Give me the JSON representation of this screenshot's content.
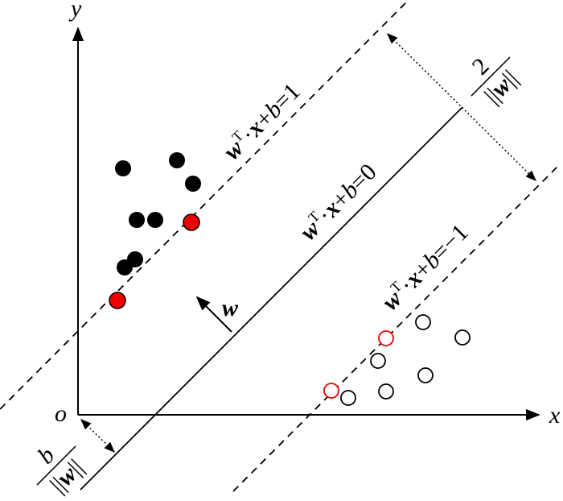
{
  "axes": {
    "x": "x",
    "y": "y",
    "origin": "o"
  },
  "hyperplanes": [
    [
      "w",
      "T",
      "·",
      "x",
      "+",
      "b",
      "=1"
    ],
    [
      "w",
      "T",
      "·",
      "x",
      "+",
      "b",
      "=0"
    ],
    [
      "w",
      "T",
      "·",
      "x",
      "+",
      "b",
      "=−1"
    ]
  ],
  "normal": "w",
  "margin": {
    "numerator": "2",
    "denominator": [
      "||",
      "w",
      "||"
    ]
  },
  "offset": {
    "numerator": "b",
    "denominator": [
      "||",
      "w",
      "||"
    ]
  }
}
